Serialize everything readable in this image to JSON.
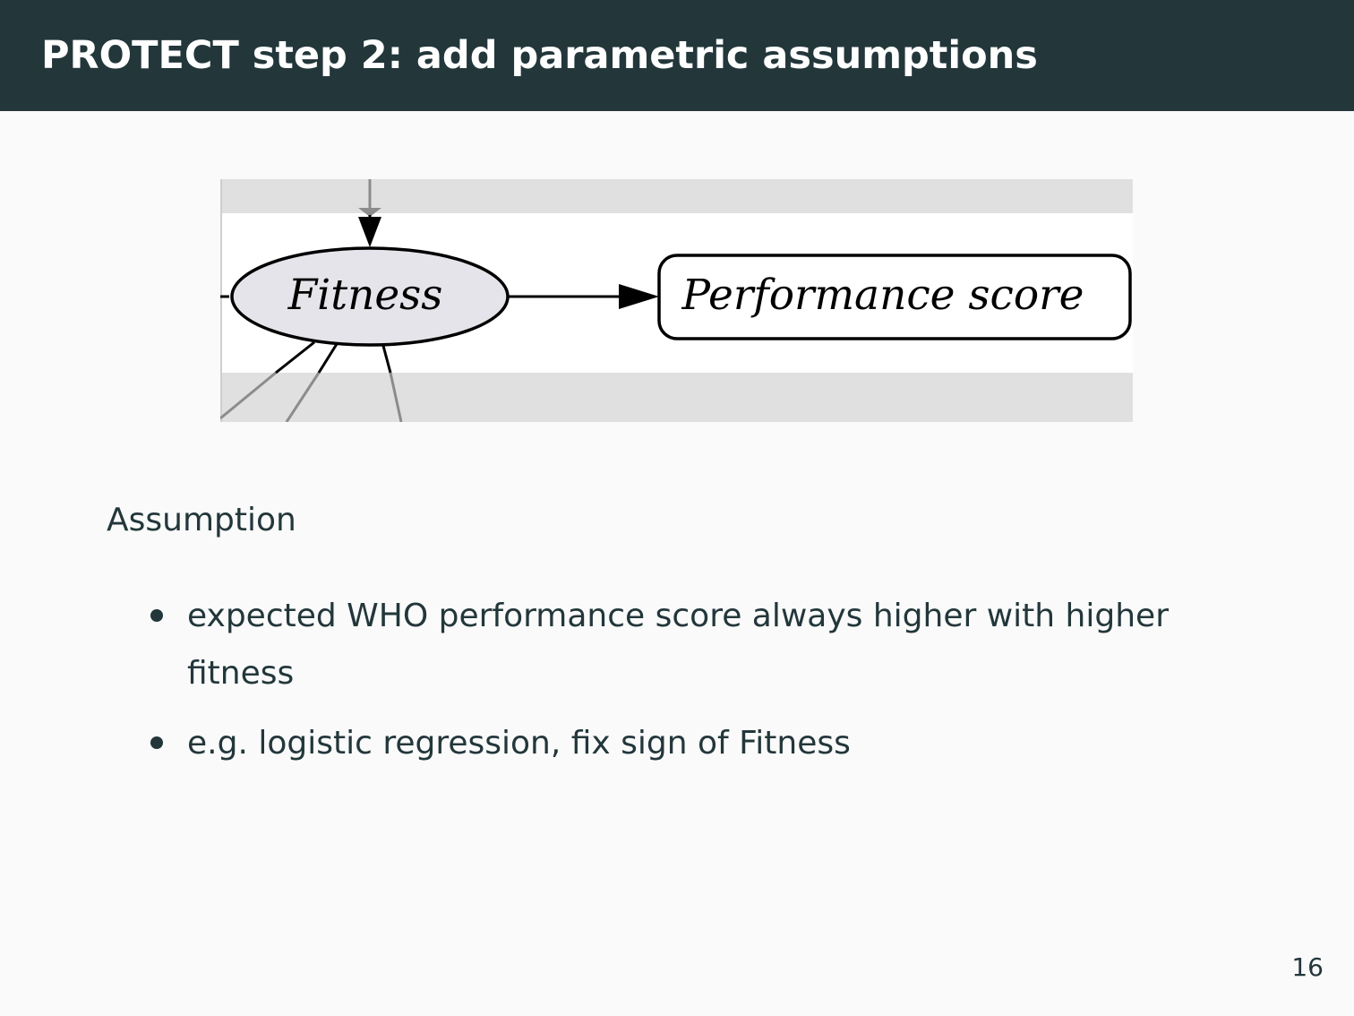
{
  "slide": {
    "title": "PROTECT step 2: add parametric assumptions",
    "page_number": "16"
  },
  "diagram": {
    "nodes": [
      {
        "id": "fitness",
        "label": "Fitness",
        "shape": "ellipse"
      },
      {
        "id": "performance",
        "label": "Performance score",
        "shape": "rounded-rectangle"
      }
    ],
    "edges": [
      {
        "from": "fitness",
        "to": "performance"
      }
    ],
    "colors": {
      "band": "#e0e0e0",
      "panel": "#ffffff",
      "ellipse_fill": "#e4e4ea",
      "partial_edge": "#8c8c8c"
    }
  },
  "content": {
    "section_label": "Assumption",
    "bullets": [
      "expected WHO performance score always higher with higher fitness",
      "e.g. logistic regression, fix sign of Fitness"
    ]
  },
  "theme": {
    "header_bg": "#23373b",
    "text": "#23373b",
    "background": "#fafafa"
  }
}
